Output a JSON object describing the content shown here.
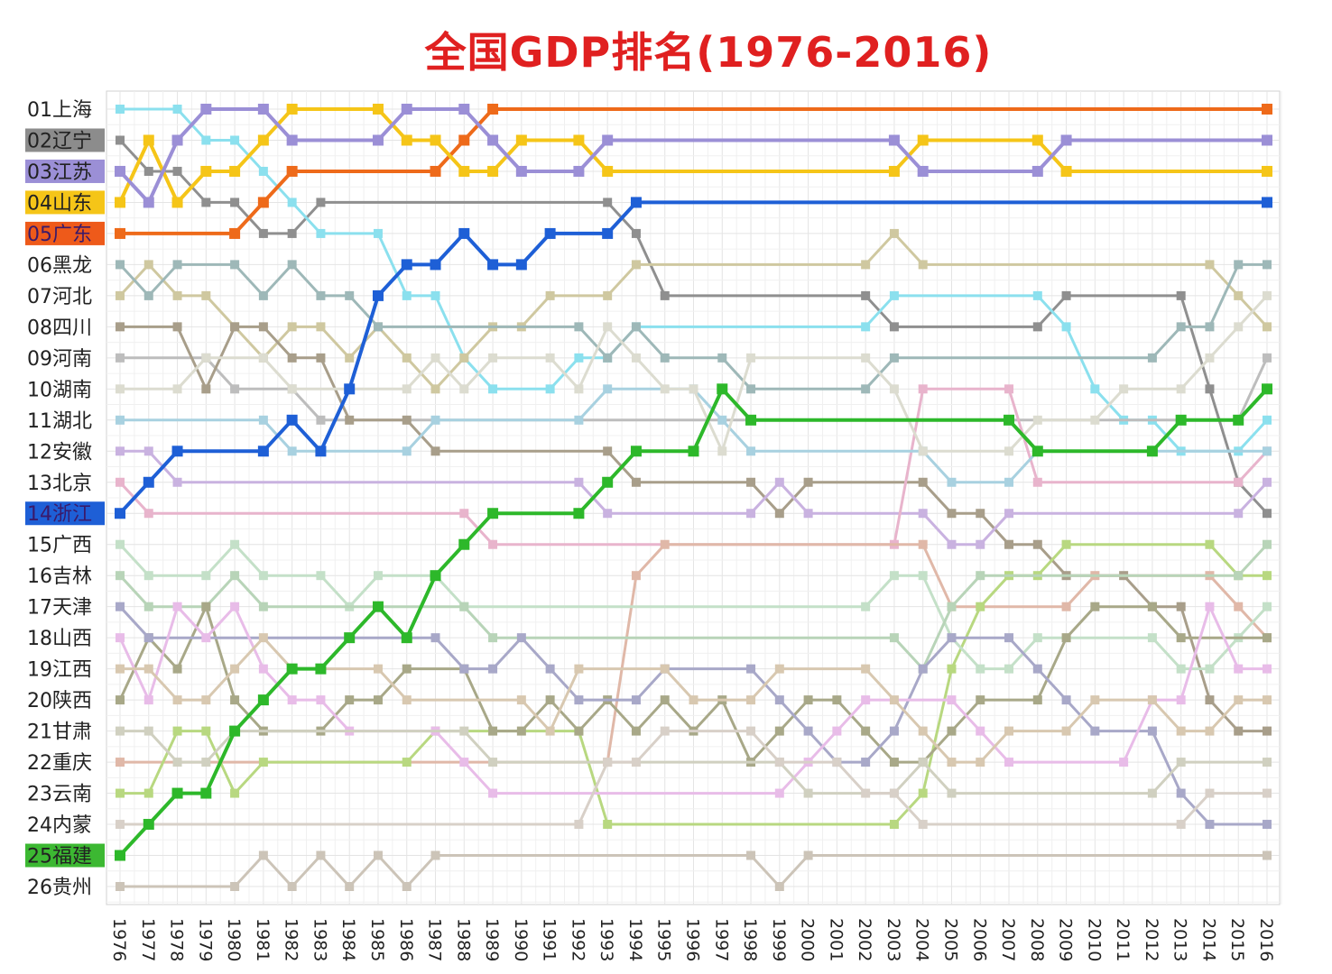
{
  "chart_data": {
    "type": "line",
    "title": "全国GDP排名(1976-2016)",
    "x": [
      1976,
      1977,
      1978,
      1979,
      1980,
      1981,
      1982,
      1983,
      1984,
      1985,
      1986,
      1987,
      1988,
      1989,
      1990,
      1991,
      1992,
      1993,
      1994,
      1995,
      1996,
      1997,
      1998,
      1999,
      2000,
      2001,
      2002,
      2003,
      2004,
      2005,
      2006,
      2007,
      2008,
      2009,
      2010,
      2011,
      2012,
      2013,
      2014,
      2015,
      2016
    ],
    "x_tick_labels": [
      "1976",
      "1977",
      "1978",
      "1979",
      "1980",
      "1981",
      "1982",
      "1983",
      "1984",
      "1985",
      "1986",
      "1987",
      "1988",
      "1989",
      "1990",
      "1991",
      "1992",
      "1993",
      "1994",
      "1995",
      "1996",
      "1997",
      "1998",
      "1999",
      "2000",
      "2001",
      "2002",
      "2003",
      "2004",
      "2005",
      "2006",
      "2007",
      "2008",
      "2009",
      "2010",
      "2011",
      "2012",
      "2013",
      "2014",
      "2015",
      "2016"
    ],
    "y_axis": "rank",
    "ylim": [
      1,
      26
    ],
    "y_inverted": true,
    "grid": true,
    "row_labels": [
      {
        "text": "01上海",
        "bg": ""
      },
      {
        "text": "02辽宁",
        "bg": "#8c8c8c"
      },
      {
        "text": "03江苏",
        "bg": "#9b8fd6"
      },
      {
        "text": "04山东",
        "bg": "#f5c518"
      },
      {
        "text": "05广东",
        "bg": "#ee5a1a"
      },
      {
        "text": "06黑龙",
        "bg": ""
      },
      {
        "text": "07河北",
        "bg": ""
      },
      {
        "text": "08四川",
        "bg": ""
      },
      {
        "text": "09河南",
        "bg": ""
      },
      {
        "text": "10湖南",
        "bg": ""
      },
      {
        "text": "11湖北",
        "bg": ""
      },
      {
        "text": "12安徽",
        "bg": ""
      },
      {
        "text": "13北京",
        "bg": ""
      },
      {
        "text": "14浙江",
        "bg": "#1e5fd6"
      },
      {
        "text": "15广西",
        "bg": ""
      },
      {
        "text": "16吉林",
        "bg": ""
      },
      {
        "text": "17天津",
        "bg": ""
      },
      {
        "text": "18山西",
        "bg": ""
      },
      {
        "text": "19江西",
        "bg": ""
      },
      {
        "text": "20陕西",
        "bg": ""
      },
      {
        "text": "21甘肃",
        "bg": ""
      },
      {
        "text": "22重庆",
        "bg": ""
      },
      {
        "text": "23云南",
        "bg": ""
      },
      {
        "text": "24内蒙",
        "bg": ""
      },
      {
        "text": "25福建",
        "bg": "#3cb832"
      },
      {
        "text": "26贵州",
        "bg": ""
      }
    ],
    "series": [
      {
        "color": "#ee6a1a",
        "width": 4,
        "values": [
          5,
          5,
          5,
          5,
          5,
          4,
          3,
          3,
          3,
          3,
          3,
          3,
          2,
          1,
          1,
          1,
          1,
          1,
          1,
          1,
          1,
          1,
          1,
          1,
          1,
          1,
          1,
          1,
          1,
          1,
          1,
          1,
          1,
          1,
          1,
          1,
          1,
          1,
          1,
          1,
          1
        ]
      },
      {
        "color": "#1e5fd6",
        "width": 4,
        "values": [
          14,
          13,
          12,
          12,
          12,
          12,
          11,
          12,
          10,
          7,
          6,
          6,
          5,
          6,
          6,
          5,
          5,
          5,
          4,
          4,
          4,
          4,
          4,
          4,
          4,
          4,
          4,
          4,
          4,
          4,
          4,
          4,
          4,
          4,
          4,
          4,
          4,
          4,
          4,
          4,
          4
        ]
      },
      {
        "color": "#2db82a",
        "width": 4,
        "values": [
          25,
          24,
          23,
          23,
          21,
          20,
          19,
          19,
          18,
          17,
          18,
          16,
          15,
          14,
          14,
          14,
          14,
          13,
          12,
          12,
          12,
          10,
          11,
          11,
          11,
          11,
          11,
          11,
          11,
          11,
          11,
          11,
          12,
          12,
          12,
          12,
          12,
          11,
          11,
          11,
          10
        ]
      },
      {
        "color": "#f5c518",
        "width": 4,
        "values": [
          4,
          2,
          4,
          3,
          3,
          2,
          1,
          1,
          1,
          1,
          2,
          2,
          3,
          3,
          2,
          2,
          2,
          3,
          3,
          3,
          3,
          3,
          3,
          3,
          3,
          3,
          3,
          3,
          2,
          2,
          2,
          2,
          2,
          3,
          3,
          3,
          3,
          3,
          3,
          3,
          3
        ]
      },
      {
        "color": "#9b8fd6",
        "width": 4,
        "values": [
          3,
          4,
          2,
          1,
          1,
          1,
          2,
          2,
          2,
          2,
          1,
          1,
          1,
          2,
          3,
          3,
          3,
          2,
          2,
          2,
          2,
          2,
          2,
          2,
          2,
          2,
          2,
          2,
          3,
          3,
          3,
          3,
          3,
          2,
          2,
          2,
          2,
          2,
          2,
          2,
          2
        ]
      },
      {
        "color": "#8f8f8f",
        "width": 3,
        "values": [
          2,
          3,
          3,
          4,
          4,
          5,
          5,
          4,
          4,
          4,
          4,
          4,
          4,
          4,
          4,
          4,
          4,
          4,
          5,
          7,
          7,
          7,
          7,
          7,
          7,
          7,
          7,
          8,
          8,
          8,
          8,
          8,
          8,
          7,
          7,
          7,
          7,
          7,
          10,
          13,
          14
        ]
      },
      {
        "color": "#8be0ee",
        "width": 3,
        "values": [
          1,
          1,
          1,
          2,
          2,
          3,
          4,
          5,
          5,
          5,
          7,
          7,
          9,
          10,
          10,
          10,
          9,
          9,
          8,
          8,
          8,
          8,
          8,
          8,
          8,
          8,
          8,
          7,
          7,
          7,
          7,
          7,
          7,
          8,
          10,
          11,
          11,
          12,
          12,
          12,
          11
        ]
      },
      {
        "color": "#cfc8a0",
        "width": 3,
        "values": [
          7,
          6,
          7,
          7,
          8,
          9,
          8,
          8,
          9,
          8,
          9,
          10,
          9,
          8,
          8,
          7,
          7,
          7,
          6,
          6,
          6,
          6,
          6,
          6,
          6,
          6,
          6,
          5,
          6,
          6,
          6,
          6,
          6,
          6,
          6,
          6,
          6,
          6,
          6,
          7,
          8
        ]
      },
      {
        "color": "#9eb8b8",
        "width": 3,
        "values": [
          6,
          7,
          6,
          6,
          6,
          7,
          6,
          7,
          7,
          8,
          8,
          8,
          8,
          8,
          8,
          8,
          8,
          9,
          8,
          9,
          9,
          9,
          10,
          10,
          10,
          10,
          10,
          9,
          9,
          9,
          9,
          9,
          9,
          9,
          9,
          9,
          9,
          8,
          8,
          6,
          6
        ]
      },
      {
        "color": "#bdbdbd",
        "width": 3,
        "values": [
          9,
          9,
          9,
          9,
          10,
          10,
          10,
          11,
          11,
          11,
          11,
          11,
          11,
          11,
          11,
          11,
          11,
          11,
          11,
          11,
          11,
          11,
          11,
          11,
          11,
          11,
          11,
          11,
          11,
          11,
          11,
          11,
          11,
          11,
          11,
          11,
          11,
          11,
          11,
          11,
          9
        ]
      },
      {
        "color": "#a89e8a",
        "width": 3,
        "values": [
          8,
          8,
          8,
          10,
          8,
          8,
          9,
          9,
          11,
          11,
          11,
          12,
          12,
          12,
          12,
          12,
          12,
          12,
          13,
          13,
          13,
          13,
          13,
          14,
          13,
          13,
          13,
          13,
          13,
          14,
          14,
          15,
          15,
          16,
          16,
          16,
          17,
          17,
          20,
          21,
          21
        ]
      },
      {
        "color": "#c9b2e0",
        "width": 3,
        "values": [
          12,
          12,
          13,
          13,
          13,
          13,
          13,
          13,
          13,
          13,
          13,
          13,
          13,
          13,
          13,
          13,
          13,
          14,
          14,
          14,
          14,
          14,
          14,
          13,
          14,
          14,
          14,
          14,
          14,
          15,
          15,
          14,
          14,
          14,
          14,
          14,
          14,
          14,
          14,
          14,
          13
        ]
      },
      {
        "color": "#e8b4cc",
        "width": 3,
        "values": [
          13,
          14,
          14,
          14,
          14,
          14,
          14,
          14,
          14,
          14,
          14,
          14,
          14,
          15,
          15,
          15,
          15,
          15,
          15,
          15,
          15,
          15,
          15,
          15,
          15,
          15,
          15,
          15,
          10,
          10,
          10,
          10,
          13,
          13,
          13,
          13,
          13,
          13,
          13,
          13,
          12
        ]
      },
      {
        "color": "#a8d1e0",
        "width": 3,
        "values": [
          11,
          11,
          11,
          11,
          11,
          11,
          12,
          12,
          12,
          12,
          12,
          11,
          11,
          11,
          11,
          11,
          11,
          10,
          10,
          10,
          10,
          11,
          12,
          12,
          12,
          12,
          12,
          12,
          12,
          13,
          13,
          13,
          12,
          12,
          12,
          12,
          12,
          12,
          12,
          12,
          12
        ]
      },
      {
        "color": "#e0b8a8",
        "width": 3,
        "values": [
          22,
          22,
          22,
          22,
          22,
          22,
          22,
          22,
          22,
          22,
          22,
          22,
          22,
          22,
          22,
          22,
          22,
          22,
          16,
          15,
          15,
          15,
          15,
          15,
          15,
          15,
          15,
          15,
          15,
          17,
          17,
          17,
          17,
          17,
          16,
          16,
          16,
          16,
          16,
          17,
          18
        ]
      },
      {
        "color": "#b8d880",
        "width": 3,
        "values": [
          23,
          23,
          21,
          21,
          23,
          22,
          22,
          22,
          22,
          22,
          22,
          21,
          21,
          21,
          21,
          21,
          21,
          24,
          24,
          24,
          24,
          24,
          24,
          24,
          24,
          24,
          24,
          24,
          23,
          19,
          17,
          16,
          16,
          15,
          15,
          15,
          15,
          15,
          15,
          16,
          16
        ]
      },
      {
        "color": "#c4e0c8",
        "width": 3,
        "values": [
          15,
          16,
          16,
          16,
          15,
          16,
          16,
          16,
          17,
          16,
          16,
          16,
          17,
          17,
          17,
          17,
          17,
          17,
          17,
          17,
          17,
          17,
          17,
          17,
          17,
          17,
          17,
          16,
          16,
          18,
          19,
          19,
          18,
          18,
          18,
          18,
          18,
          19,
          19,
          18,
          17
        ]
      },
      {
        "color": "#b8d4b8",
        "width": 3,
        "values": [
          16,
          17,
          17,
          17,
          16,
          17,
          17,
          17,
          17,
          17,
          17,
          17,
          17,
          18,
          18,
          18,
          18,
          18,
          18,
          18,
          18,
          18,
          18,
          18,
          18,
          18,
          18,
          18,
          19,
          17,
          16,
          16,
          16,
          16,
          16,
          16,
          16,
          16,
          16,
          16,
          15
        ]
      },
      {
        "color": "#a8a888",
        "width": 3,
        "values": [
          20,
          18,
          19,
          17,
          20,
          21,
          21,
          21,
          20,
          20,
          19,
          19,
          19,
          21,
          21,
          20,
          21,
          20,
          21,
          20,
          21,
          20,
          22,
          21,
          20,
          20,
          21,
          22,
          22,
          21,
          20,
          20,
          20,
          18,
          17,
          17,
          17,
          18,
          18,
          18,
          18
        ]
      },
      {
        "color": "#a8a8c8",
        "width": 3,
        "values": [
          17,
          18,
          18,
          18,
          18,
          18,
          18,
          18,
          18,
          18,
          18,
          18,
          19,
          19,
          18,
          19,
          20,
          20,
          20,
          19,
          19,
          19,
          19,
          20,
          21,
          22,
          22,
          21,
          19,
          18,
          18,
          18,
          19,
          20,
          21,
          21,
          21,
          23,
          24,
          24,
          24
        ]
      },
      {
        "color": "#e8bce8",
        "width": 3,
        "values": [
          18,
          20,
          17,
          18,
          17,
          19,
          20,
          20,
          21,
          21,
          21,
          21,
          22,
          23,
          23,
          23,
          23,
          23,
          23,
          23,
          23,
          23,
          23,
          23,
          22,
          21,
          20,
          20,
          20,
          20,
          21,
          22,
          22,
          22,
          22,
          22,
          20,
          20,
          17,
          19,
          19
        ]
      },
      {
        "color": "#d8c8b0",
        "width": 3,
        "values": [
          19,
          19,
          20,
          20,
          19,
          18,
          19,
          19,
          19,
          19,
          20,
          20,
          20,
          20,
          20,
          21,
          19,
          19,
          19,
          19,
          20,
          20,
          20,
          19,
          19,
          19,
          19,
          20,
          21,
          22,
          22,
          21,
          21,
          21,
          20,
          20,
          20,
          21,
          21,
          20,
          20
        ]
      },
      {
        "color": "#d0d0c0",
        "width": 3,
        "values": [
          21,
          21,
          22,
          22,
          21,
          21,
          21,
          21,
          21,
          21,
          21,
          21,
          21,
          22,
          22,
          22,
          22,
          22,
          22,
          22,
          22,
          22,
          22,
          22,
          23,
          23,
          23,
          23,
          22,
          23,
          23,
          23,
          23,
          23,
          23,
          23,
          23,
          22,
          22,
          22,
          22
        ]
      },
      {
        "color": "#d8d0c8",
        "width": 3,
        "values": [
          24,
          24,
          24,
          24,
          24,
          24,
          24,
          24,
          24,
          24,
          24,
          24,
          24,
          24,
          24,
          24,
          24,
          22,
          22,
          21,
          21,
          21,
          21,
          22,
          22,
          22,
          23,
          23,
          24,
          24,
          24,
          24,
          24,
          24,
          24,
          24,
          24,
          24,
          23,
          23,
          23
        ]
      },
      {
        "color": "#ccc4b8",
        "width": 3,
        "values": [
          26,
          26,
          26,
          26,
          26,
          25,
          26,
          25,
          26,
          25,
          26,
          25,
          25,
          25,
          25,
          25,
          25,
          25,
          25,
          25,
          25,
          25,
          25,
          26,
          25,
          25,
          25,
          25,
          25,
          25,
          25,
          25,
          25,
          25,
          25,
          25,
          25,
          25,
          25,
          25,
          25
        ]
      },
      {
        "color": "#dcdcd0",
        "width": 3,
        "values": [
          10,
          10,
          10,
          9,
          9,
          9,
          10,
          10,
          10,
          10,
          10,
          9,
          10,
          9,
          9,
          9,
          10,
          8,
          9,
          10,
          10,
          12,
          9,
          9,
          9,
          9,
          9,
          10,
          12,
          12,
          12,
          12,
          11,
          11,
          11,
          10,
          10,
          10,
          9,
          8,
          7
        ]
      }
    ]
  }
}
